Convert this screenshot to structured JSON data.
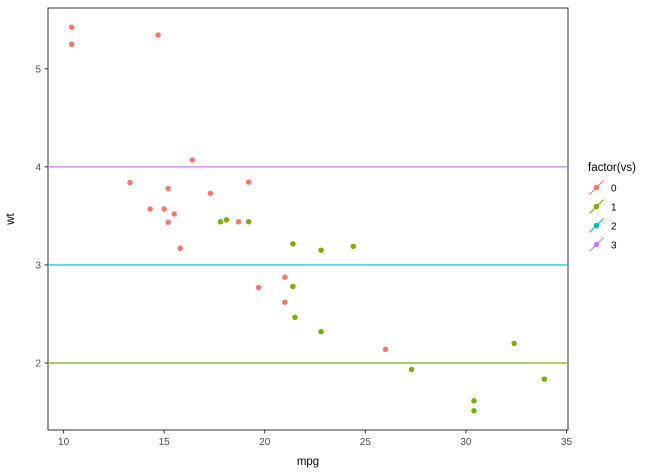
{
  "chart_data": {
    "type": "scatter",
    "title": "",
    "xlabel": "mpg",
    "ylabel": "wt",
    "xlim": [
      9.225,
      35.075
    ],
    "ylim": [
      1.317,
      5.62
    ],
    "x_ticks": [
      10,
      15,
      20,
      25,
      30,
      35
    ],
    "y_ticks": [
      2,
      3,
      4,
      5
    ],
    "grid": false,
    "panel_border_color": "#333333",
    "tick_color": "#333333",
    "tick_label_color": "#4d4d4d",
    "legend_title": "factor(vs)",
    "legend_position": "right",
    "series": [
      {
        "name": "0",
        "color": "#F8766D",
        "points": [
          [
            21.0,
            2.62
          ],
          [
            21.0,
            2.875
          ],
          [
            18.7,
            3.44
          ],
          [
            14.3,
            3.57
          ],
          [
            16.4,
            4.07
          ],
          [
            17.3,
            3.73
          ],
          [
            15.2,
            3.78
          ],
          [
            10.4,
            5.25
          ],
          [
            10.4,
            5.424
          ],
          [
            14.7,
            5.345
          ],
          [
            15.5,
            3.52
          ],
          [
            15.2,
            3.435
          ],
          [
            13.3,
            3.84
          ],
          [
            19.2,
            3.845
          ],
          [
            26.0,
            2.14
          ],
          [
            15.8,
            3.17
          ],
          [
            19.7,
            2.77
          ],
          [
            15.0,
            3.57
          ]
        ]
      },
      {
        "name": "1",
        "color": "#7CAE00",
        "points": [
          [
            22.8,
            2.32
          ],
          [
            21.4,
            3.215
          ],
          [
            18.1,
            3.46
          ],
          [
            24.4,
            3.19
          ],
          [
            22.8,
            3.15
          ],
          [
            19.2,
            3.44
          ],
          [
            17.8,
            3.44
          ],
          [
            32.4,
            2.2
          ],
          [
            30.4,
            1.615
          ],
          [
            33.9,
            1.835
          ],
          [
            21.5,
            2.465
          ],
          [
            27.3,
            1.935
          ],
          [
            30.4,
            1.513
          ],
          [
            21.4,
            2.78
          ]
        ]
      }
    ],
    "hlines": [
      {
        "y": 2,
        "color": "#7CAE00",
        "legend": "1"
      },
      {
        "y": 3,
        "color": "#00BFC4",
        "legend": "2"
      },
      {
        "y": 4,
        "color": "#C77CFF",
        "legend": "3"
      }
    ],
    "legend_entries": [
      {
        "label": "0",
        "color": "#F8766D"
      },
      {
        "label": "1",
        "color": "#7CAE00"
      },
      {
        "label": "2",
        "color": "#00BFC4"
      },
      {
        "label": "3",
        "color": "#C77CFF"
      }
    ]
  }
}
